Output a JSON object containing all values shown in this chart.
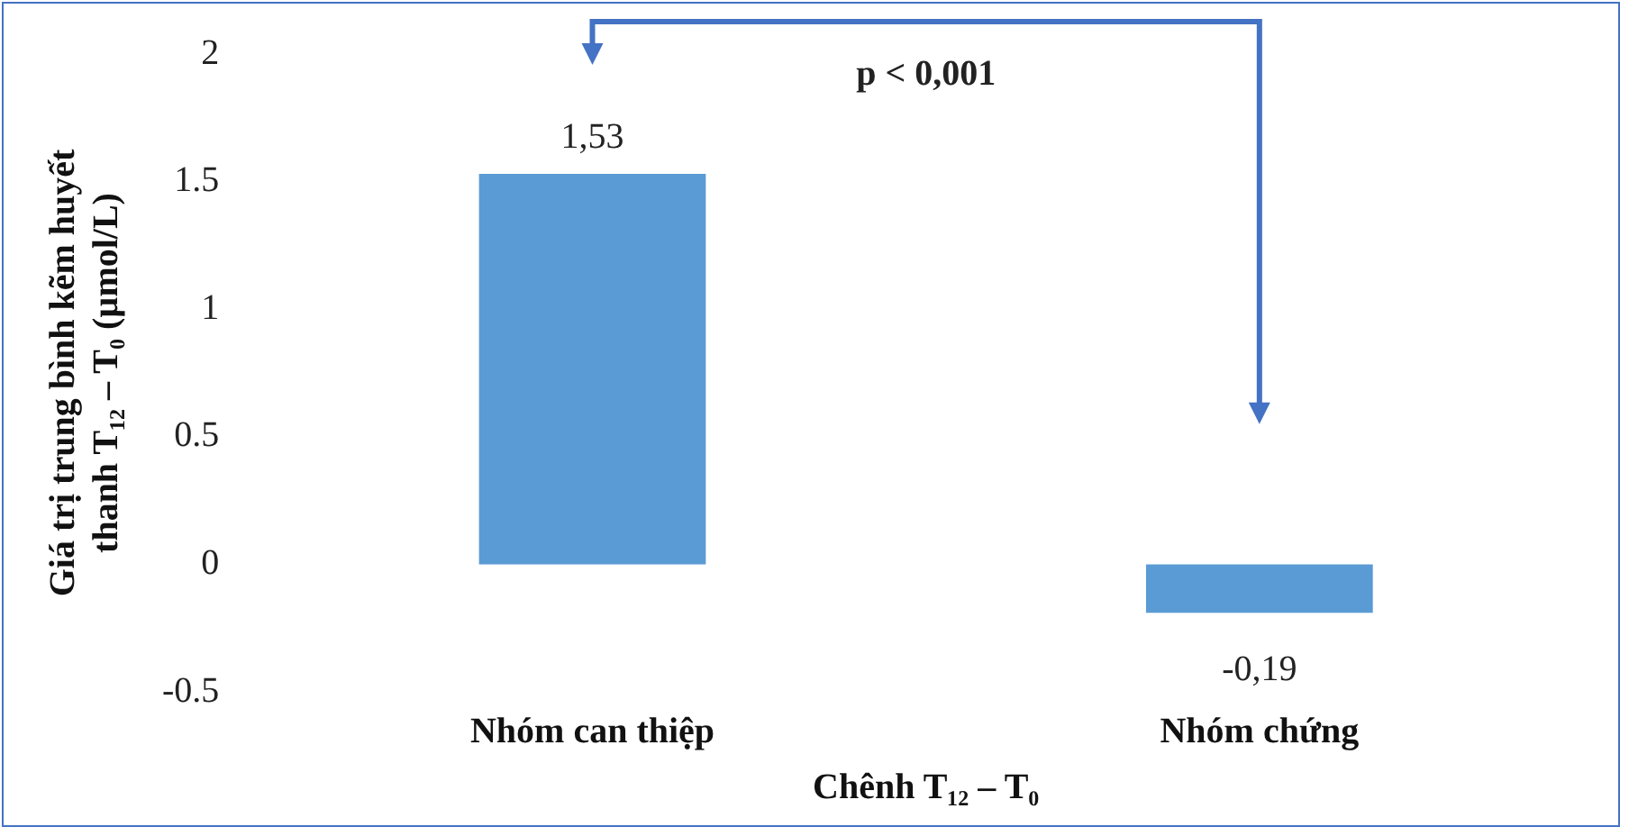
{
  "chart_data": {
    "type": "bar",
    "xlabel": "Chênh T₁₂ – T₀",
    "ylabel": "Giá trị trung bình kẽm huyết thanh T₁₂ – T₀ (µmol/L)",
    "categories": [
      "Nhóm can thiệp",
      "Nhóm chứng"
    ],
    "values": [
      1.53,
      -0.19
    ],
    "color": "#5b9bd5",
    "value_labels": [
      "1,53",
      "-0,19"
    ],
    "ylim": [
      -0.5,
      2
    ],
    "yticks": [
      -0.5,
      0,
      0.5,
      1,
      1.5,
      2
    ],
    "grid": false,
    "legend": false,
    "annotations": [
      "p < 0,001"
    ]
  }
}
